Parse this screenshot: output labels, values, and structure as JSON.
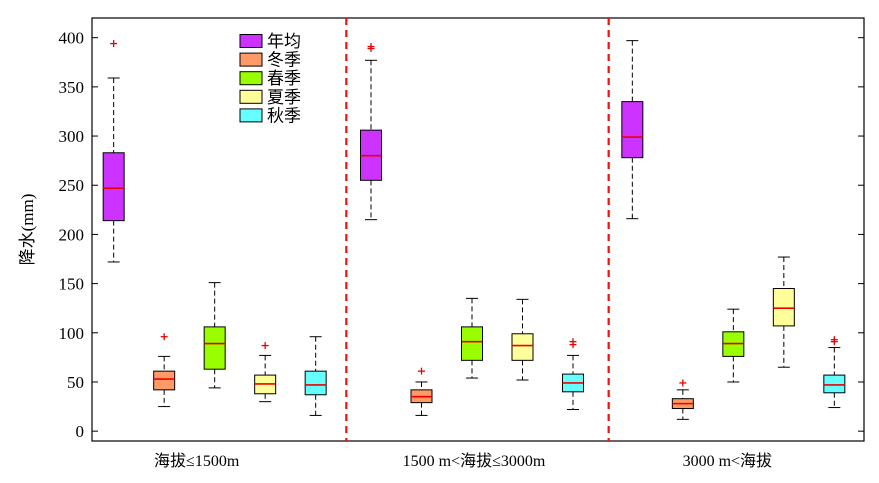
{
  "chart_data": {
    "type": "box",
    "ylabel": "降水(mm)",
    "ylim": [
      -10,
      420
    ],
    "yticks": [
      0,
      50,
      100,
      150,
      200,
      250,
      300,
      350,
      400
    ],
    "grid": false,
    "legend_position": "top-left of first panel",
    "groups": [
      "海拔≤1500m",
      "1500 m<海拔≤3000m",
      "3000 m<海拔"
    ],
    "series": [
      {
        "name": "年均",
        "color": "#cc33ff"
      },
      {
        "name": "冬季",
        "color": "#ff9966"
      },
      {
        "name": "春季",
        "color": "#99ff00"
      },
      {
        "name": "夏季",
        "color": "#ffff99"
      },
      {
        "name": "秋季",
        "color": "#66ffff"
      }
    ],
    "boxes": [
      [
        {
          "min": 172,
          "q1": 214,
          "median": 247,
          "q3": 283,
          "max": 359,
          "outliers": [
            394
          ]
        },
        {
          "min": 25,
          "q1": 42,
          "median": 53,
          "q3": 61,
          "max": 76,
          "outliers": [
            96
          ]
        },
        {
          "min": 44,
          "q1": 63,
          "median": 89,
          "q3": 106,
          "max": 151,
          "outliers": []
        },
        {
          "min": 30,
          "q1": 38,
          "median": 48,
          "q3": 57,
          "max": 77,
          "outliers": [
            87
          ]
        },
        {
          "min": 16,
          "q1": 37,
          "median": 47,
          "q3": 61,
          "max": 96,
          "outliers": []
        }
      ],
      [
        {
          "min": 215,
          "q1": 255,
          "median": 280,
          "q3": 306,
          "max": 377,
          "outliers": [
            389,
            391
          ]
        },
        {
          "min": 16,
          "q1": 29,
          "median": 35,
          "q3": 42,
          "max": 50,
          "outliers": [
            61
          ]
        },
        {
          "min": 54,
          "q1": 72,
          "median": 91,
          "q3": 106,
          "max": 135,
          "outliers": []
        },
        {
          "min": 52,
          "q1": 72,
          "median": 87,
          "q3": 99,
          "max": 134,
          "outliers": []
        },
        {
          "min": 22,
          "q1": 40,
          "median": 49,
          "q3": 58,
          "max": 77,
          "outliers": [
            88,
            91
          ]
        }
      ],
      [
        {
          "min": 216,
          "q1": 278,
          "median": 299,
          "q3": 335,
          "max": 397,
          "outliers": []
        },
        {
          "min": 12,
          "q1": 23,
          "median": 28,
          "q3": 33,
          "max": 42,
          "outliers": [
            49
          ]
        },
        {
          "min": 50,
          "q1": 76,
          "median": 89,
          "q3": 101,
          "max": 124,
          "outliers": []
        },
        {
          "min": 65,
          "q1": 107,
          "median": 125,
          "q3": 145,
          "max": 177,
          "outliers": []
        },
        {
          "min": 24,
          "q1": 39,
          "median": 47,
          "q3": 57,
          "max": 85,
          "outliers": [
            91,
            93
          ]
        }
      ]
    ]
  }
}
